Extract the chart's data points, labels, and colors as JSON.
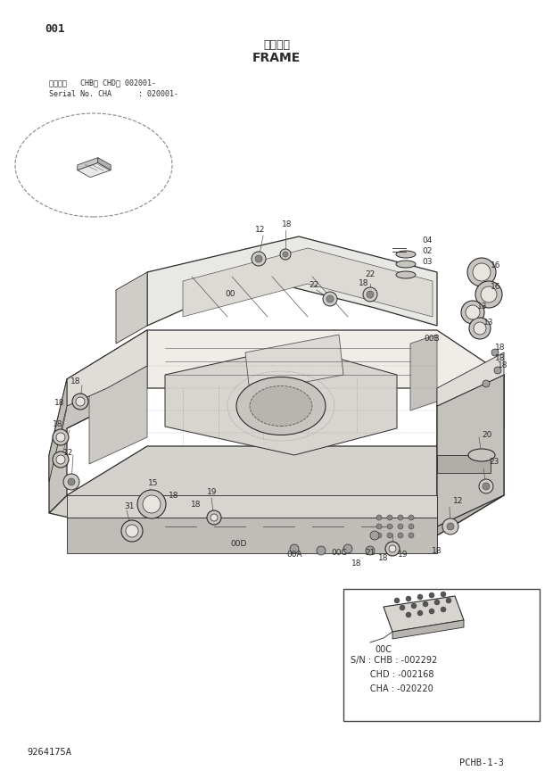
{
  "bg_color": "#ffffff",
  "title_jp": "フレーム",
  "title_en": "FRAME",
  "page_num": "001",
  "serial_line1": "適用号機   CHB、 CHD： 002001-",
  "serial_line2": "Serial No. CHA      : 020001-",
  "footer_left": "9264175A",
  "footer_right": "PCHB-1-3",
  "box_sn1": "S/N : CHB : -002292",
  "box_sn2": "       CHD : -002168",
  "box_sn3": "       CHA : -020220",
  "box_00c": "00C"
}
